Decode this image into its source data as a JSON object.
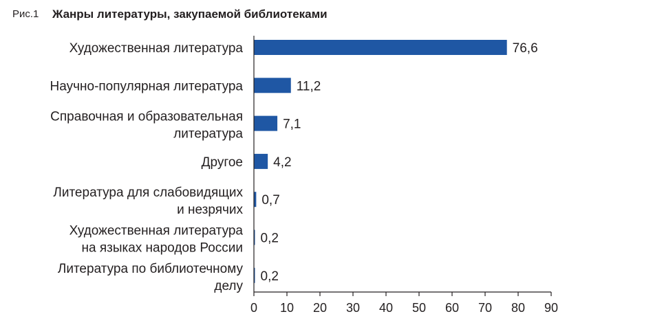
{
  "figure": {
    "number": "Рис.1",
    "title": "Жанры литературы, закупаемой библиотеками"
  },
  "chart_data": {
    "type": "bar",
    "orientation": "horizontal",
    "title": "Жанры литературы, закупаемой библиотеками",
    "categories": [
      [
        "Художественная литература"
      ],
      [
        "Научно-популярная литература"
      ],
      [
        "Справочная и образовательная",
        "литература"
      ],
      [
        "Другое"
      ],
      [
        "Литература для слабовидящих",
        "и незрячих"
      ],
      [
        "Художественная литература",
        "на языках народов России"
      ],
      [
        "Литература по библиотечному",
        "делу"
      ]
    ],
    "values": [
      76.6,
      11.2,
      7.1,
      4.2,
      0.7,
      0.2,
      0.2
    ],
    "value_labels": [
      "76,6",
      "11,2",
      "7,1",
      "4,2",
      "0,7",
      "0,2",
      "0,2"
    ],
    "xlim": [
      0,
      90
    ],
    "xticks": [
      0,
      10,
      20,
      30,
      40,
      50,
      60,
      70,
      80,
      90
    ],
    "bar_color": "#1f57a4",
    "axis_color": "#231f20",
    "grid": false,
    "legend": "none"
  }
}
